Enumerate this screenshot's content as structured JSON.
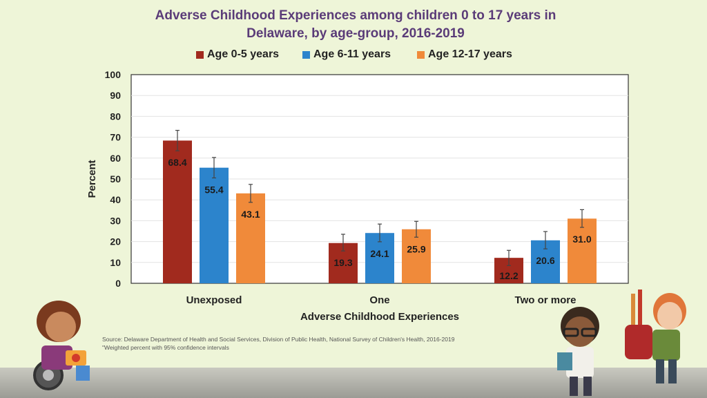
{
  "chart_data": {
    "type": "bar",
    "title_lines": [
      "Adverse Childhood Experiences among children 0 to 17 years in",
      "Delaware, by age-group, 2016-2019"
    ],
    "categories": [
      "Unexposed",
      "One",
      "Two or more"
    ],
    "series": [
      {
        "name": "Age 0-5 years",
        "color": "#a12a1e",
        "values": [
          68.4,
          19.3,
          12.2
        ],
        "labels": [
          "68.4",
          "19.3",
          "12.2"
        ],
        "ci_low": [
          63.5,
          15.5,
          8.5
        ],
        "ci_high": [
          73.3,
          23.5,
          15.8
        ]
      },
      {
        "name": "Age 6-11 years",
        "color": "#2c84cc",
        "values": [
          55.4,
          24.1,
          20.6
        ],
        "labels": [
          "55.4",
          "24.1",
          "20.6"
        ],
        "ci_low": [
          50.5,
          19.9,
          16.5
        ],
        "ci_high": [
          60.3,
          28.4,
          24.8
        ]
      },
      {
        "name": "Age 12-17 years",
        "color": "#f08a3a",
        "values": [
          43.1,
          25.9,
          31.0
        ],
        "labels": [
          "43.1",
          "25.9",
          "31.0"
        ],
        "ci_low": [
          38.8,
          22.1,
          26.8
        ],
        "ci_high": [
          47.4,
          29.7,
          35.3
        ]
      }
    ],
    "xlabel": "Adverse Childhood Experiences",
    "ylabel": "Percent",
    "ylim": [
      0,
      100
    ],
    "yticks": [
      "0",
      "10",
      "20",
      "30",
      "40",
      "50",
      "60",
      "70",
      "80",
      "90",
      "100"
    ],
    "grid": true,
    "legend_position": "top",
    "source_lines": [
      "Source: Delaware Department of Health and Social Services, Division of Public Health, National Survey of Children's Health, 2016-2019",
      "\"Weighted percent with 95% confidence intervals"
    ]
  }
}
